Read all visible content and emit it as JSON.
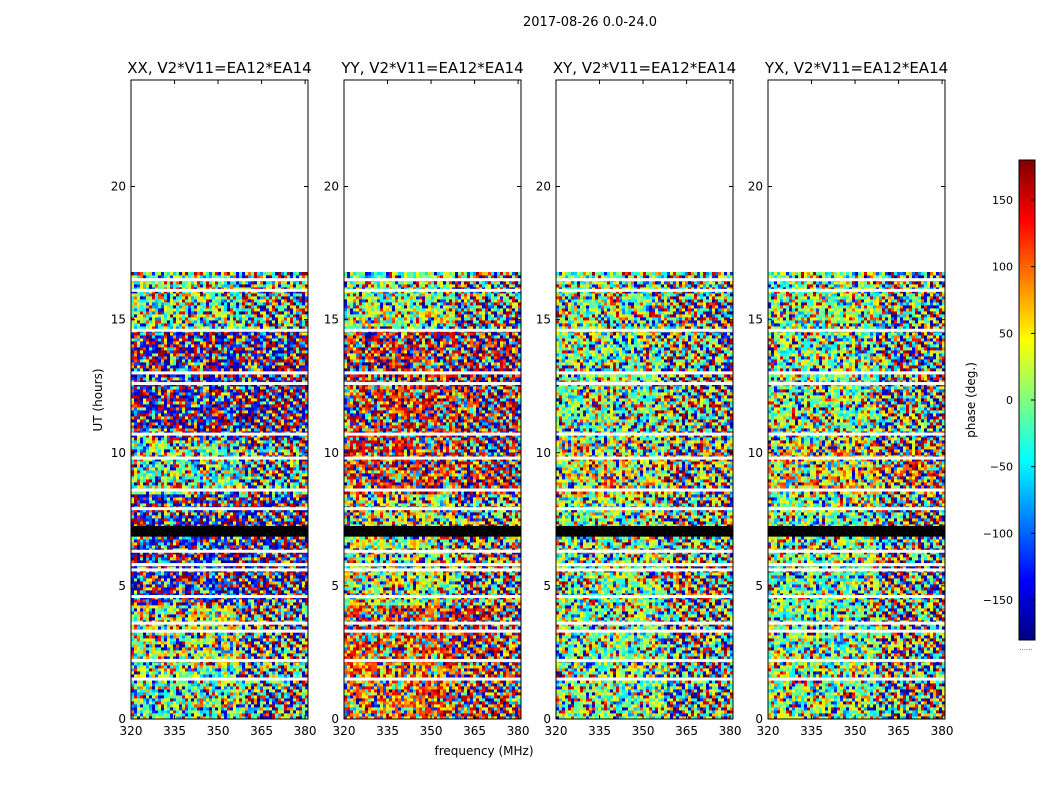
{
  "suptitle": "2017-08-26 0.0-24.0",
  "xlabel": "frequency (MHz)",
  "ylabel": "UT (hours)",
  "colorbar": {
    "label": "phase (deg.)",
    "ticks": [
      150,
      100,
      50,
      0,
      -50,
      -100,
      -150
    ],
    "tick_labels": [
      "150",
      "100",
      "50",
      "0",
      "−50",
      "−100",
      "−150"
    ],
    "range": [
      -180,
      180
    ],
    "below_label": "......",
    "colormap": "jet"
  },
  "chart_data": [
    {
      "type": "heatmap",
      "title": "XX, V2*V11=EA12*EA14",
      "xlim": [
        320,
        381
      ],
      "ylim": [
        0,
        24
      ],
      "xticks": [
        320,
        335,
        350,
        365,
        380
      ],
      "yticks": [
        0,
        5,
        10,
        15,
        20
      ],
      "tick_labels_x": [
        "320",
        "335",
        "350",
        "365",
        "380"
      ],
      "tick_labels_y": [
        "0",
        "5",
        "10",
        "15",
        "20"
      ],
      "data_extent_hours": [
        0,
        16.7
      ],
      "mean_phase_deg_by_band": [
        -10,
        30,
        -150,
        -150,
        -10,
        -160,
        -160,
        0
      ],
      "black_band_hours": [
        6.85,
        7.25
      ],
      "white_gap_hours": [
        1.5,
        2.2,
        3.3,
        3.6,
        4.6,
        5.6,
        5.8,
        6.3,
        7.9,
        8.6,
        9.8,
        10.7,
        12.6,
        13.0,
        14.6,
        16.1,
        16.5
      ]
    },
    {
      "type": "heatmap",
      "title": "YY, V2*V11=EA12*EA14",
      "xlim": [
        320,
        381
      ],
      "ylim": [
        0,
        24
      ],
      "xticks": [
        320,
        335,
        350,
        365,
        380
      ],
      "yticks": [
        0,
        5,
        10,
        15,
        20
      ],
      "tick_labels_x": [
        "320",
        "335",
        "350",
        "365",
        "380"
      ],
      "tick_labels_y": [
        "0",
        "5",
        "10",
        "15",
        "20"
      ],
      "data_extent_hours": [
        0,
        16.7
      ],
      "mean_phase_deg_by_band": [
        100,
        120,
        20,
        30,
        130,
        130,
        140,
        0
      ],
      "black_band_hours": [
        6.85,
        7.25
      ],
      "white_gap_hours": [
        1.5,
        2.2,
        3.3,
        3.6,
        4.6,
        5.6,
        5.8,
        6.3,
        7.9,
        8.6,
        9.8,
        10.7,
        12.6,
        13.0,
        14.6,
        16.1,
        16.5
      ]
    },
    {
      "type": "heatmap",
      "title": "XY, V2*V11=EA12*EA14",
      "xlim": [
        320,
        381
      ],
      "ylim": [
        0,
        24
      ],
      "xticks": [
        320,
        335,
        350,
        365,
        380
      ],
      "yticks": [
        0,
        5,
        10,
        15,
        20
      ],
      "tick_labels_x": [
        "320",
        "335",
        "350",
        "365",
        "380"
      ],
      "tick_labels_y": [
        "0",
        "5",
        "10",
        "15",
        "20"
      ],
      "data_extent_hours": [
        0,
        16.7
      ],
      "mean_phase_deg_by_band": [
        0,
        0,
        0,
        0,
        40,
        0,
        0,
        0
      ],
      "black_band_hours": [
        6.85,
        7.25
      ],
      "white_gap_hours": [
        1.5,
        2.2,
        3.3,
        3.6,
        4.6,
        5.6,
        5.8,
        6.3,
        7.9,
        8.6,
        9.8,
        10.7,
        12.6,
        13.0,
        14.6,
        16.1,
        16.5
      ]
    },
    {
      "type": "heatmap",
      "title": "YX, V2*V11=EA12*EA14",
      "xlim": [
        320,
        381
      ],
      "ylim": [
        0,
        24
      ],
      "xticks": [
        320,
        335,
        350,
        365,
        380
      ],
      "yticks": [
        0,
        5,
        10,
        15,
        20
      ],
      "tick_labels_x": [
        "320",
        "335",
        "350",
        "365",
        "380"
      ],
      "tick_labels_y": [
        "0",
        "5",
        "10",
        "15",
        "20"
      ],
      "data_extent_hours": [
        0,
        16.7
      ],
      "mean_phase_deg_by_band": [
        0,
        0,
        0,
        0,
        60,
        0,
        0,
        0
      ],
      "black_band_hours": [
        6.85,
        7.25
      ],
      "white_gap_hours": [
        1.5,
        2.2,
        3.3,
        3.6,
        4.6,
        5.6,
        5.8,
        6.3,
        7.9,
        8.6,
        9.8,
        10.7,
        12.6,
        13.0,
        14.6,
        16.1,
        16.5
      ]
    }
  ]
}
